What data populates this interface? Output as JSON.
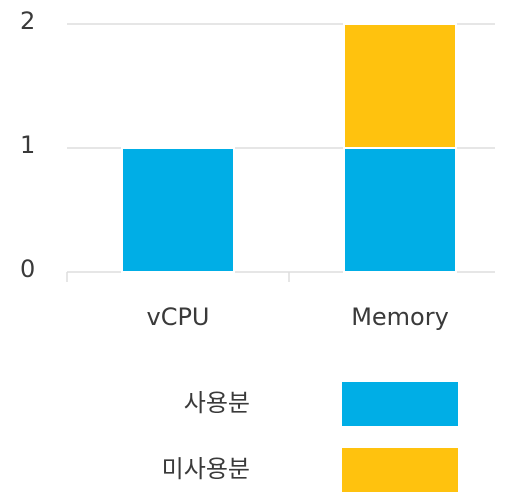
{
  "chart_data": {
    "type": "stacked_bar",
    "categories": [
      "vCPU",
      "Memory"
    ],
    "series": [
      {
        "name": "사용분",
        "color": "#00aee6",
        "values": [
          1,
          1
        ]
      },
      {
        "name": "미사용분",
        "color": "#ffc20e",
        "values": [
          0,
          1
        ]
      }
    ],
    "ylim": [
      0,
      2
    ],
    "yticks": [
      0,
      1,
      2
    ],
    "grid": true,
    "legend": "bottom"
  }
}
